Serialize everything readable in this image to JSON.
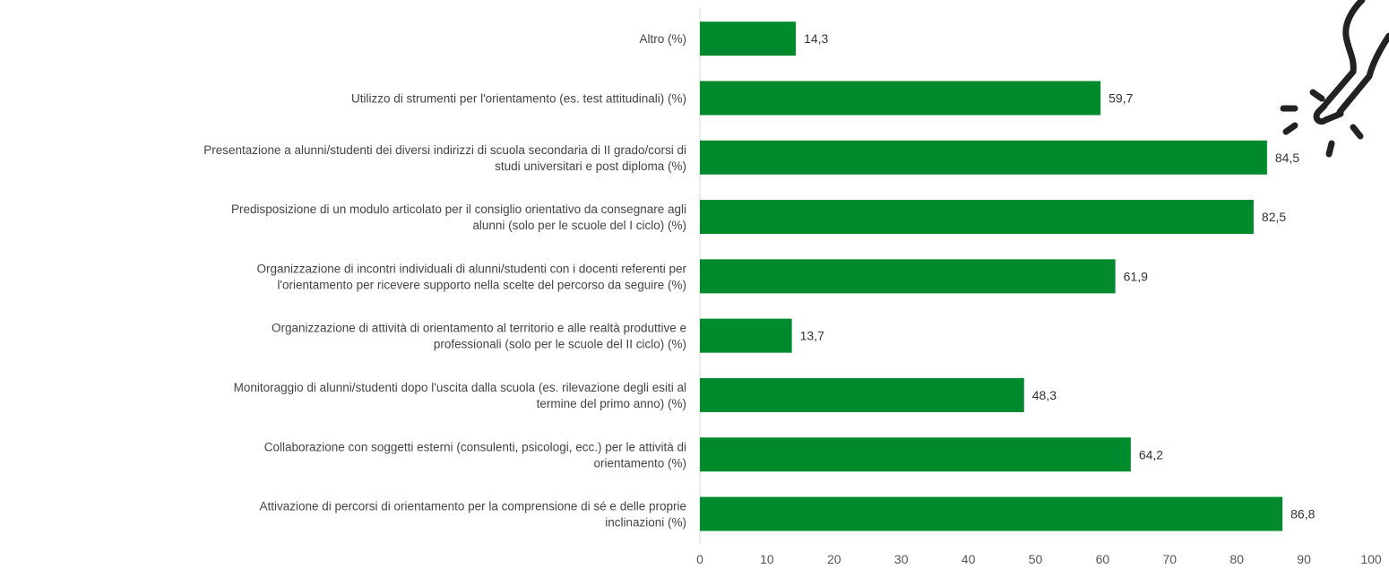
{
  "chart_data": {
    "type": "bar",
    "orientation": "horizontal",
    "bar_color": "#008a2e",
    "xlim": [
      0,
      100
    ],
    "x_ticks": [
      "0",
      "10",
      "20",
      "30",
      "40",
      "50",
      "60",
      "70",
      "80",
      "90",
      "100"
    ],
    "categories": [
      [
        "Altro (%)"
      ],
      [
        "Utilizzo di strumenti per l'orientamento (es. test attitudinali) (%)"
      ],
      [
        "Presentazione a alunni/studenti dei diversi indirizzi di scuola secondaria di II grado/corsi di",
        "studi universitari e post diploma (%)"
      ],
      [
        "Predisposizione di un modulo articolato per il consiglio orientativo da consegnare agli",
        "alunni (solo per le scuole del I ciclo) (%)"
      ],
      [
        "Organizzazione di incontri individuali  di alunni/studenti con i docenti referenti per",
        "l'orientamento per ricevere supporto nella scelte del percorso da seguire (%)"
      ],
      [
        "Organizzazione di attività di orientamento al territorio e alle realtà produttive e",
        "professionali (solo per le scuole del II ciclo) (%)"
      ],
      [
        "Monitoraggio di alunni/studenti dopo l'uscita dalla scuola (es. rilevazione degli esiti al",
        "termine del primo anno) (%)"
      ],
      [
        "Collaborazione con soggetti esterni (consulenti, psicologi, ecc.) per le attività di",
        "orientamento (%)"
      ],
      [
        "Attivazione di percorsi di orientamento per la comprensione di sé e delle proprie",
        "inclinazioni (%)"
      ]
    ],
    "values": [
      14.3,
      59.7,
      84.5,
      82.5,
      61.9,
      13.7,
      48.3,
      64.2,
      86.8
    ],
    "value_labels": [
      "14,3",
      "59,7",
      "84,5",
      "82,5",
      "61,9",
      "13,7",
      "48,3",
      "64,2",
      "86,8"
    ]
  },
  "decoration": {
    "icon": "lightbulb-icon"
  }
}
